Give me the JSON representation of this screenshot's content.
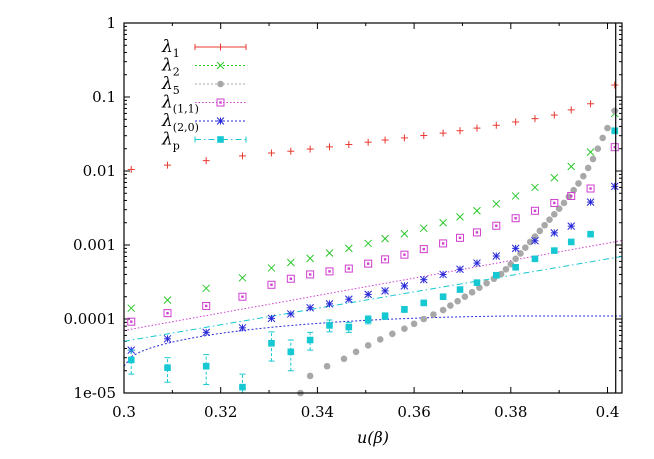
{
  "chart_data": {
    "type": "scatter",
    "title": "",
    "xlabel": "u(β)",
    "ylabel": "",
    "xscale": "linear",
    "yscale": "log",
    "xlim": [
      0.3,
      0.403
    ],
    "ylim": [
      1e-05,
      1
    ],
    "vertical_line_x": 0.4017,
    "legend_position": "top-left",
    "x_tick_labels": [
      "0.3",
      "0.32",
      "0.34",
      "0.36",
      "0.38",
      "0.4"
    ],
    "y_tick_labels": [
      "1e-05",
      "0.0001",
      "0.001",
      "0.01",
      "0.1",
      "1"
    ],
    "series": [
      {
        "key": "l1",
        "name": "λ1",
        "base": "λ",
        "sub": "1",
        "color": "#e8382f",
        "marker": "plus",
        "style": "points+errorbars",
        "x": [
          0.3015,
          0.309,
          0.317,
          0.3245,
          0.3305,
          0.3345,
          0.3385,
          0.3425,
          0.3465,
          0.3505,
          0.354,
          0.358,
          0.362,
          0.366,
          0.3695,
          0.373,
          0.377,
          0.381,
          0.385,
          0.389,
          0.3925,
          0.3965,
          0.4015
        ],
        "y": [
          0.0105,
          0.012,
          0.0138,
          0.016,
          0.0175,
          0.0185,
          0.0198,
          0.0212,
          0.0228,
          0.0245,
          0.0262,
          0.028,
          0.0302,
          0.0325,
          0.035,
          0.038,
          0.0415,
          0.046,
          0.051,
          0.057,
          0.067,
          0.081,
          0.145
        ]
      },
      {
        "key": "l2",
        "name": "λ2",
        "base": "λ",
        "sub": "2",
        "color": "#2cc82c",
        "marker": "x",
        "style": "points",
        "x": [
          0.3015,
          0.309,
          0.317,
          0.3245,
          0.3305,
          0.3345,
          0.3385,
          0.3425,
          0.3465,
          0.3505,
          0.354,
          0.358,
          0.362,
          0.366,
          0.3695,
          0.373,
          0.377,
          0.381,
          0.385,
          0.389,
          0.3925,
          0.3965,
          0.4015
        ],
        "y": [
          0.00014,
          0.00018,
          0.00026,
          0.00036,
          0.00049,
          0.00058,
          0.00066,
          0.00078,
          0.0009,
          0.00105,
          0.00122,
          0.00142,
          0.00168,
          0.002,
          0.0024,
          0.0029,
          0.0036,
          0.0046,
          0.006,
          0.0081,
          0.0115,
          0.018,
          0.06
        ]
      },
      {
        "key": "l5",
        "name": "λ5",
        "base": "λ",
        "sub": "5",
        "color": "#a8a8a8",
        "marker": "circle",
        "style": "points",
        "x": [
          0.3365,
          0.3385,
          0.342,
          0.3455,
          0.348,
          0.3505,
          0.353,
          0.3555,
          0.358,
          0.36,
          0.362,
          0.364,
          0.366,
          0.3675,
          0.369,
          0.3705,
          0.372,
          0.3735,
          0.375,
          0.3765,
          0.378,
          0.379,
          0.38,
          0.381,
          0.382,
          0.383,
          0.384,
          0.385,
          0.386,
          0.387,
          0.388,
          0.389,
          0.39,
          0.391,
          0.392,
          0.393,
          0.394,
          0.395,
          0.396,
          0.397,
          0.398,
          0.399,
          0.4,
          0.4015
        ],
        "y": [
          1e-05,
          1.7e-05,
          2.3e-05,
          2.9e-05,
          3.6e-05,
          4.4e-05,
          5.3e-05,
          6.3e-05,
          7.4e-05,
          8.6e-05,
          0.0001,
          0.000115,
          0.000132,
          0.000152,
          0.000174,
          0.0002,
          0.00023,
          0.000265,
          0.000305,
          0.00035,
          0.000405,
          0.00047,
          0.00055,
          0.00065,
          0.00077,
          0.00092,
          0.0011,
          0.0013,
          0.00155,
          0.00185,
          0.0022,
          0.0026,
          0.0031,
          0.0037,
          0.0045,
          0.0055,
          0.0068,
          0.0085,
          0.011,
          0.0145,
          0.02,
          0.028,
          0.038,
          0.065
        ]
      },
      {
        "key": "l11",
        "name": "λ(1,1)",
        "base": "λ",
        "sub": "(1,1)",
        "color": "#cf3ecf",
        "marker": "box",
        "style": "points+fit",
        "x": [
          0.3015,
          0.309,
          0.317,
          0.3245,
          0.3305,
          0.3345,
          0.3385,
          0.3425,
          0.3465,
          0.3505,
          0.354,
          0.358,
          0.362,
          0.366,
          0.3695,
          0.373,
          0.377,
          0.381,
          0.385,
          0.389,
          0.3925,
          0.3965,
          0.4015
        ],
        "y": [
          9.2e-05,
          0.00012,
          0.00015,
          0.0002,
          0.00029,
          0.00035,
          0.0004,
          0.00044,
          0.00048,
          0.00056,
          0.00064,
          0.00074,
          0.00088,
          0.00105,
          0.00125,
          0.00148,
          0.00182,
          0.0023,
          0.0029,
          0.0037,
          0.0046,
          0.0058,
          0.021
        ],
        "fit": {
          "x0": 0.3,
          "y0": 7e-05,
          "x1": 0.403,
          "y1": 0.00115
        }
      },
      {
        "key": "l20",
        "name": "λ(2,0)",
        "base": "λ",
        "sub": "(2,0)",
        "color": "#2828d8",
        "marker": "star",
        "style": "points+fit",
        "x": [
          0.3015,
          0.309,
          0.317,
          0.3245,
          0.3305,
          0.3345,
          0.3385,
          0.3425,
          0.3465,
          0.3505,
          0.354,
          0.358,
          0.362,
          0.366,
          0.3695,
          0.373,
          0.377,
          0.381,
          0.385,
          0.389,
          0.3925,
          0.3965,
          0.4015
        ],
        "y": [
          3.8e-05,
          5.4e-05,
          6.6e-05,
          7.6e-05,
          0.000102,
          0.000117,
          0.000142,
          0.00016,
          0.000185,
          0.000215,
          0.00024,
          0.00028,
          0.00034,
          0.0004,
          0.00047,
          0.00057,
          0.00071,
          0.0009,
          0.00114,
          0.00146,
          0.0018,
          0.0038,
          0.0062
        ],
        "fit": {
          "x0": 0.3,
          "y0": 2.3e-05,
          "x1": 0.403,
          "y1": 0.00011,
          "shape": "saturating"
        }
      },
      {
        "key": "lp",
        "name": "λp",
        "base": "λ",
        "sub": "p",
        "color": "#16c8d2",
        "marker": "square",
        "style": "points+errorbars+fit",
        "x": [
          0.3015,
          0.309,
          0.317,
          0.3245,
          0.3305,
          0.3345,
          0.3385,
          0.3425,
          0.3465,
          0.3505,
          0.354,
          0.358,
          0.362,
          0.366,
          0.3695,
          0.373,
          0.377,
          0.381,
          0.385,
          0.389,
          0.3925,
          0.3965,
          0.4015
        ],
        "y": [
          2.8e-05,
          2.2e-05,
          2.3e-05,
          1.2e-05,
          4.7e-05,
          3.6e-05,
          5.2e-05,
          8.2e-05,
          7.8e-05,
          9.8e-05,
          0.00011,
          0.000135,
          0.000165,
          0.0002,
          0.00025,
          0.00031,
          0.00039,
          0.0005,
          0.00065,
          0.00084,
          0.0011,
          0.0014,
          0.035
        ],
        "err": [
          1e-05,
          8e-06,
          1e-05,
          6e-06,
          2e-05,
          1.6e-05,
          1.4e-05,
          1.5e-05,
          1.2e-05,
          1.2e-05,
          1.1e-05,
          1.2e-05,
          1.3e-05,
          1.5e-05,
          1.7e-05,
          2e-05,
          2.5e-05,
          3e-05,
          3.5e-05,
          4.5e-05,
          6e-05,
          8e-05,
          0.003
        ],
        "fit": {
          "x0": 0.3,
          "y0": 5e-05,
          "x1": 0.403,
          "y1": 0.0007
        }
      }
    ]
  }
}
